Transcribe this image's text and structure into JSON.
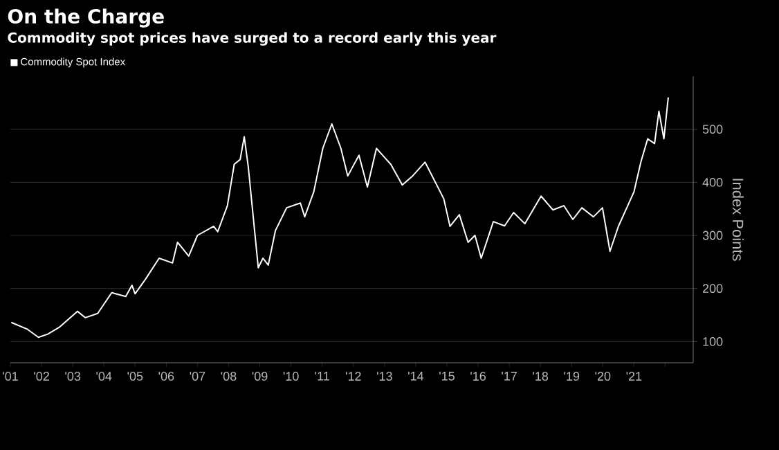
{
  "chart_data": {
    "type": "line",
    "title": "On the Charge",
    "subtitle": "Commodity spot prices have surged to a record early this year",
    "ylabel": "Index Points",
    "x": [
      2001.03,
      2001.55,
      2001.9,
      2002.2,
      2002.57,
      2003.15,
      2003.4,
      2003.8,
      2004.25,
      2004.7,
      2004.9,
      2005.0,
      2005.34,
      2005.77,
      2006.2,
      2006.36,
      2006.72,
      2007.0,
      2007.52,
      2007.65,
      2007.96,
      2008.18,
      2008.37,
      2008.5,
      2008.63,
      2008.76,
      2008.95,
      2009.1,
      2009.27,
      2009.5,
      2009.86,
      2010.3,
      2010.44,
      2010.73,
      2011.02,
      2011.31,
      2011.6,
      2011.82,
      2012.18,
      2012.45,
      2012.74,
      2013.06,
      2013.2,
      2013.57,
      2013.9,
      2014.3,
      2014.9,
      2015.1,
      2015.4,
      2015.68,
      2015.9,
      2016.1,
      2016.49,
      2016.85,
      2017.14,
      2017.5,
      2018.02,
      2018.4,
      2018.75,
      2019.04,
      2019.33,
      2019.7,
      2019.99,
      2020.23,
      2020.5,
      2020.77,
      2021.0,
      2021.22,
      2021.44,
      2021.66,
      2021.8,
      2021.96,
      2022.1
    ],
    "series": [
      {
        "name": "Commodity Spot Index",
        "color": "#ffffff",
        "values": [
          136,
          123,
          108,
          114,
          127,
          157,
          145,
          153,
          192,
          185,
          206,
          190,
          218,
          257,
          248,
          287,
          261,
          300,
          317,
          307,
          356,
          434,
          443,
          486,
          429,
          352,
          239,
          257,
          244,
          309,
          352,
          361,
          335,
          382,
          464,
          510,
          464,
          412,
          451,
          391,
          464,
          443,
          434,
          395,
          412,
          438,
          369,
          317,
          339,
          287,
          300,
          257,
          326,
          318,
          343,
          322,
          374,
          348,
          356,
          330,
          352,
          335,
          352,
          270,
          317,
          352,
          382,
          438,
          482,
          473,
          534,
          482,
          560
        ]
      }
    ],
    "xlim": [
      2001,
      2022.9
    ],
    "ylim": [
      60,
      600
    ],
    "xticks": [
      {
        "value": 2001,
        "label": "'01"
      },
      {
        "value": 2002,
        "label": "'02"
      },
      {
        "value": 2003,
        "label": "'03"
      },
      {
        "value": 2004,
        "label": "'04"
      },
      {
        "value": 2005,
        "label": "'05"
      },
      {
        "value": 2006,
        "label": "'06"
      },
      {
        "value": 2007,
        "label": "'07"
      },
      {
        "value": 2008,
        "label": "'08"
      },
      {
        "value": 2009,
        "label": "'09"
      },
      {
        "value": 2010,
        "label": "'10"
      },
      {
        "value": 2011,
        "label": "'11"
      },
      {
        "value": 2012,
        "label": "'12"
      },
      {
        "value": 2013,
        "label": "'13"
      },
      {
        "value": 2014,
        "label": "'14"
      },
      {
        "value": 2015,
        "label": "'15"
      },
      {
        "value": 2016,
        "label": "'16"
      },
      {
        "value": 2017,
        "label": "'17"
      },
      {
        "value": 2018,
        "label": "'18"
      },
      {
        "value": 2019,
        "label": "'19"
      },
      {
        "value": 2020,
        "label": "'20"
      },
      {
        "value": 2021,
        "label": "'21"
      },
      {
        "value": 2022,
        "label": null
      }
    ],
    "yticks": [
      100,
      200,
      300,
      400,
      500
    ],
    "grid": "y",
    "legend": "top left",
    "marker": "none",
    "line_style": "solid"
  }
}
